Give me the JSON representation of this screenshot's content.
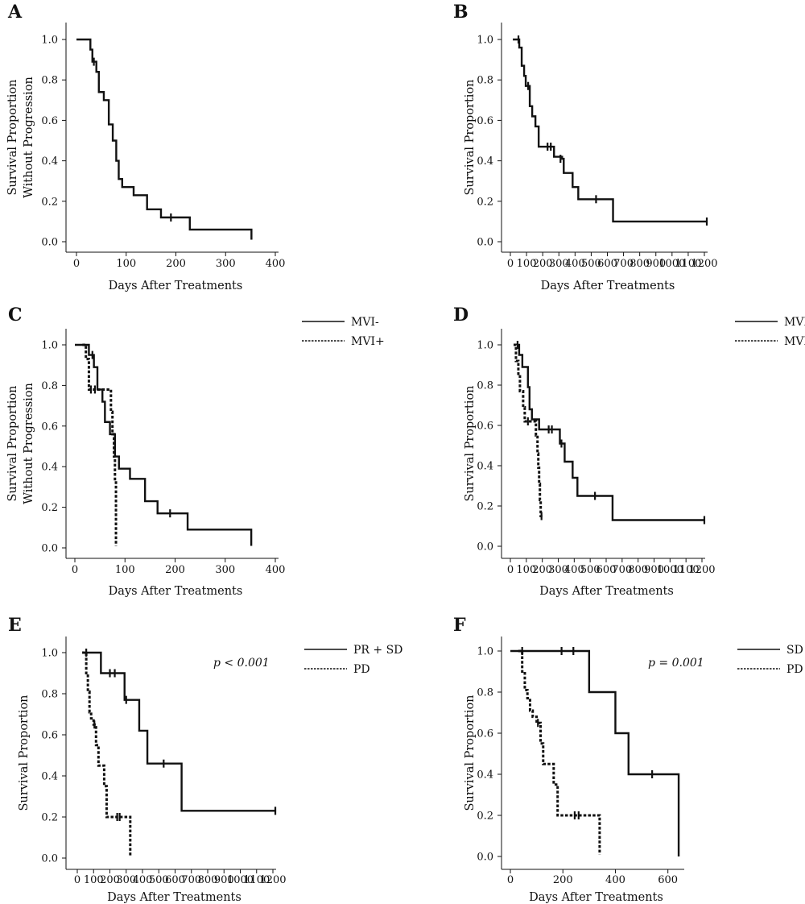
{
  "chart_data": [
    {
      "panel": "A",
      "type": "line",
      "xlabel": "Days After Treatments",
      "ylabel": "Survival Proportion\nWithout Progression",
      "xlim": [
        0,
        400
      ],
      "ylim": [
        0,
        1
      ],
      "xticks": [
        0,
        100,
        200,
        300,
        400
      ],
      "yticks": [
        "0.0",
        "0.2",
        "0.4",
        "0.6",
        "0.8",
        "1.0"
      ],
      "series": [
        {
          "style": "solid",
          "steps": [
            [
              0,
              1.0
            ],
            [
              28,
              0.95
            ],
            [
              32,
              0.89
            ],
            [
              40,
              0.84
            ],
            [
              45,
              0.74
            ],
            [
              55,
              0.7
            ],
            [
              65,
              0.58
            ],
            [
              73,
              0.5
            ],
            [
              80,
              0.4
            ],
            [
              85,
              0.31
            ],
            [
              92,
              0.27
            ],
            [
              115,
              0.23
            ],
            [
              142,
              0.16
            ],
            [
              170,
              0.12
            ],
            [
              228,
              0.06
            ],
            [
              352,
              0.01
            ]
          ],
          "censored": [
            [
              35,
              0.89
            ],
            [
              190,
              0.12
            ]
          ]
        }
      ]
    },
    {
      "panel": "B",
      "type": "line",
      "xlabel": "Days After Treatments",
      "ylabel": "Survival Proportion",
      "xlim": [
        0,
        1200
      ],
      "ylim": [
        0,
        1
      ],
      "xticks": [
        0,
        100,
        200,
        300,
        400,
        500,
        600,
        700,
        800,
        900,
        1000,
        1100,
        1200
      ],
      "yticks": [
        "0.0",
        "0.2",
        "0.4",
        "0.6",
        "0.8",
        "1.0"
      ],
      "series": [
        {
          "style": "solid",
          "steps": [
            [
              15,
              1.0
            ],
            [
              55,
              0.96
            ],
            [
              70,
              0.87
            ],
            [
              85,
              0.82
            ],
            [
              95,
              0.77
            ],
            [
              120,
              0.67
            ],
            [
              135,
              0.62
            ],
            [
              155,
              0.57
            ],
            [
              175,
              0.47
            ],
            [
              270,
              0.42
            ],
            [
              320,
              0.41
            ],
            [
              330,
              0.34
            ],
            [
              385,
              0.27
            ],
            [
              420,
              0.21
            ],
            [
              635,
              0.1
            ],
            [
              1220,
              0.1
            ]
          ],
          "censored": [
            [
              50,
              1.0
            ],
            [
              110,
              0.77
            ],
            [
              230,
              0.47
            ],
            [
              250,
              0.47
            ],
            [
              310,
              0.41
            ],
            [
              530,
              0.21
            ],
            [
              1215,
              0.1
            ]
          ]
        }
      ]
    },
    {
      "panel": "C",
      "type": "line",
      "xlabel": "Days After Treatments",
      "ylabel": "Survival Proportion\nWithout Progression",
      "xlim": [
        0,
        400
      ],
      "ylim": [
        0,
        1
      ],
      "xticks": [
        0,
        100,
        200,
        300,
        400
      ],
      "yticks": [
        "0.0",
        "0.2",
        "0.4",
        "0.6",
        "0.8",
        "1.0"
      ],
      "legend": [
        "MVI-",
        "MVI+"
      ],
      "series": [
        {
          "name": "MVI-",
          "style": "solid",
          "steps": [
            [
              0,
              1.0
            ],
            [
              28,
              0.95
            ],
            [
              38,
              0.89
            ],
            [
              45,
              0.78
            ],
            [
              55,
              0.72
            ],
            [
              60,
              0.62
            ],
            [
              70,
              0.56
            ],
            [
              80,
              0.45
            ],
            [
              88,
              0.39
            ],
            [
              110,
              0.34
            ],
            [
              140,
              0.23
            ],
            [
              165,
              0.17
            ],
            [
              225,
              0.09
            ],
            [
              352,
              0.01
            ]
          ],
          "censored": [
            [
              35,
              0.95
            ],
            [
              190,
              0.17
            ]
          ]
        },
        {
          "name": "MVI+",
          "style": "dashed",
          "steps": [
            [
              15,
              1.0
            ],
            [
              22,
              0.93
            ],
            [
              28,
              0.78
            ],
            [
              72,
              0.67
            ],
            [
              75,
              0.56
            ],
            [
              78,
              0.45
            ],
            [
              80,
              0.33
            ],
            [
              82,
              0.01
            ]
          ],
          "censored": [
            [
              32,
              0.78
            ],
            [
              40,
              0.78
            ]
          ]
        }
      ]
    },
    {
      "panel": "D",
      "type": "line",
      "xlabel": "Days After Treatments",
      "ylabel": "Survival Proportion",
      "xlim": [
        0,
        1200
      ],
      "ylim": [
        0,
        1
      ],
      "xticks": [
        0,
        100,
        200,
        300,
        400,
        500,
        600,
        700,
        800,
        900,
        1000,
        1100,
        1200
      ],
      "yticks": [
        "0.0",
        "0.2",
        "0.4",
        "0.6",
        "0.8",
        "1.0"
      ],
      "legend": [
        "MVI-",
        "MVI+"
      ],
      "series": [
        {
          "name": "MVI-",
          "style": "solid",
          "steps": [
            [
              40,
              1.0
            ],
            [
              55,
              0.95
            ],
            [
              75,
              0.89
            ],
            [
              110,
              0.79
            ],
            [
              120,
              0.68
            ],
            [
              135,
              0.63
            ],
            [
              180,
              0.58
            ],
            [
              310,
              0.51
            ],
            [
              340,
              0.42
            ],
            [
              390,
              0.34
            ],
            [
              420,
              0.25
            ],
            [
              640,
              0.13
            ],
            [
              1220,
              0.13
            ]
          ],
          "censored": [
            [
              45,
              1.0
            ],
            [
              240,
              0.58
            ],
            [
              260,
              0.58
            ],
            [
              320,
              0.51
            ],
            [
              530,
              0.25
            ],
            [
              1215,
              0.13
            ]
          ]
        },
        {
          "name": "MVI+",
          "style": "dashed",
          "steps": [
            [
              20,
              1.0
            ],
            [
              35,
              0.92
            ],
            [
              50,
              0.85
            ],
            [
              60,
              0.77
            ],
            [
              80,
              0.69
            ],
            [
              90,
              0.62
            ],
            [
              160,
              0.55
            ],
            [
              170,
              0.46
            ],
            [
              175,
              0.39
            ],
            [
              180,
              0.31
            ],
            [
              185,
              0.23
            ],
            [
              190,
              0.15
            ],
            [
              200,
              0.15
            ]
          ],
          "censored": [
            [
              110,
              0.62
            ],
            [
              195,
              0.15
            ]
          ]
        }
      ]
    },
    {
      "panel": "E",
      "type": "line",
      "xlabel": "Days After Treatments",
      "ylabel": "Survival Proportion",
      "xlim": [
        0,
        1200
      ],
      "ylim": [
        0,
        1
      ],
      "xticks": [
        0,
        100,
        200,
        300,
        400,
        500,
        600,
        700,
        800,
        900,
        1000,
        1100,
        1200
      ],
      "yticks": [
        "0.0",
        "0.2",
        "0.4",
        "0.6",
        "0.8",
        "1.0"
      ],
      "legend": [
        "PR + SD",
        "PD"
      ],
      "annotation": "p < 0.001",
      "series": [
        {
          "name": "PR + SD",
          "style": "solid",
          "steps": [
            [
              40,
              1.0
            ],
            [
              145,
              0.9
            ],
            [
              290,
              0.77
            ],
            [
              380,
              0.62
            ],
            [
              430,
              0.46
            ],
            [
              640,
              0.23
            ],
            [
              1220,
              0.23
            ]
          ],
          "censored": [
            [
              55,
              1.0
            ],
            [
              200,
              0.9
            ],
            [
              230,
              0.9
            ],
            [
              300,
              0.77
            ],
            [
              530,
              0.46
            ],
            [
              1215,
              0.23
            ]
          ]
        },
        {
          "name": "PD",
          "style": "dashed",
          "steps": [
            [
              30,
              1.0
            ],
            [
              55,
              0.9
            ],
            [
              65,
              0.81
            ],
            [
              75,
              0.71
            ],
            [
              85,
              0.68
            ],
            [
              100,
              0.65
            ],
            [
              115,
              0.55
            ],
            [
              130,
              0.45
            ],
            [
              165,
              0.35
            ],
            [
              180,
              0.2
            ],
            [
              320,
              0.2
            ],
            [
              325,
              0.01
            ]
          ],
          "censored": [
            [
              105,
              0.65
            ],
            [
              245,
              0.2
            ],
            [
              260,
              0.2
            ]
          ]
        }
      ]
    },
    {
      "panel": "F",
      "type": "line",
      "xlabel": "Days After Treatments",
      "ylabel": "Survival Proportion",
      "xlim": [
        0,
        650
      ],
      "ylim": [
        0,
        1
      ],
      "xticks": [
        0,
        200,
        400,
        600
      ],
      "yticks": [
        "0.0",
        "0.2",
        "0.4",
        "0.6",
        "0.8",
        "1.0"
      ],
      "legend": [
        "SD",
        "PD"
      ],
      "annotation": "p = 0.001",
      "series": [
        {
          "name": "SD",
          "style": "solid",
          "steps": [
            [
              0,
              1.0
            ],
            [
              300,
              0.8
            ],
            [
              400,
              0.6
            ],
            [
              450,
              0.4
            ],
            [
              640,
              0.4
            ],
            [
              641,
              0.0
            ]
          ],
          "censored": [
            [
              45,
              1.0
            ],
            [
              195,
              1.0
            ],
            [
              240,
              1.0
            ],
            [
              540,
              0.4
            ]
          ]
        },
        {
          "name": "PD",
          "style": "dashed",
          "steps": [
            [
              30,
              1.0
            ],
            [
              45,
              0.9
            ],
            [
              55,
              0.81
            ],
            [
              65,
              0.77
            ],
            [
              75,
              0.71
            ],
            [
              85,
              0.68
            ],
            [
              100,
              0.65
            ],
            [
              115,
              0.55
            ],
            [
              125,
              0.45
            ],
            [
              165,
              0.35
            ],
            [
              180,
              0.2
            ],
            [
              335,
              0.2
            ],
            [
              340,
              0.01
            ]
          ],
          "censored": [
            [
              105,
              0.65
            ],
            [
              245,
              0.2
            ],
            [
              260,
              0.2
            ]
          ]
        }
      ]
    }
  ]
}
